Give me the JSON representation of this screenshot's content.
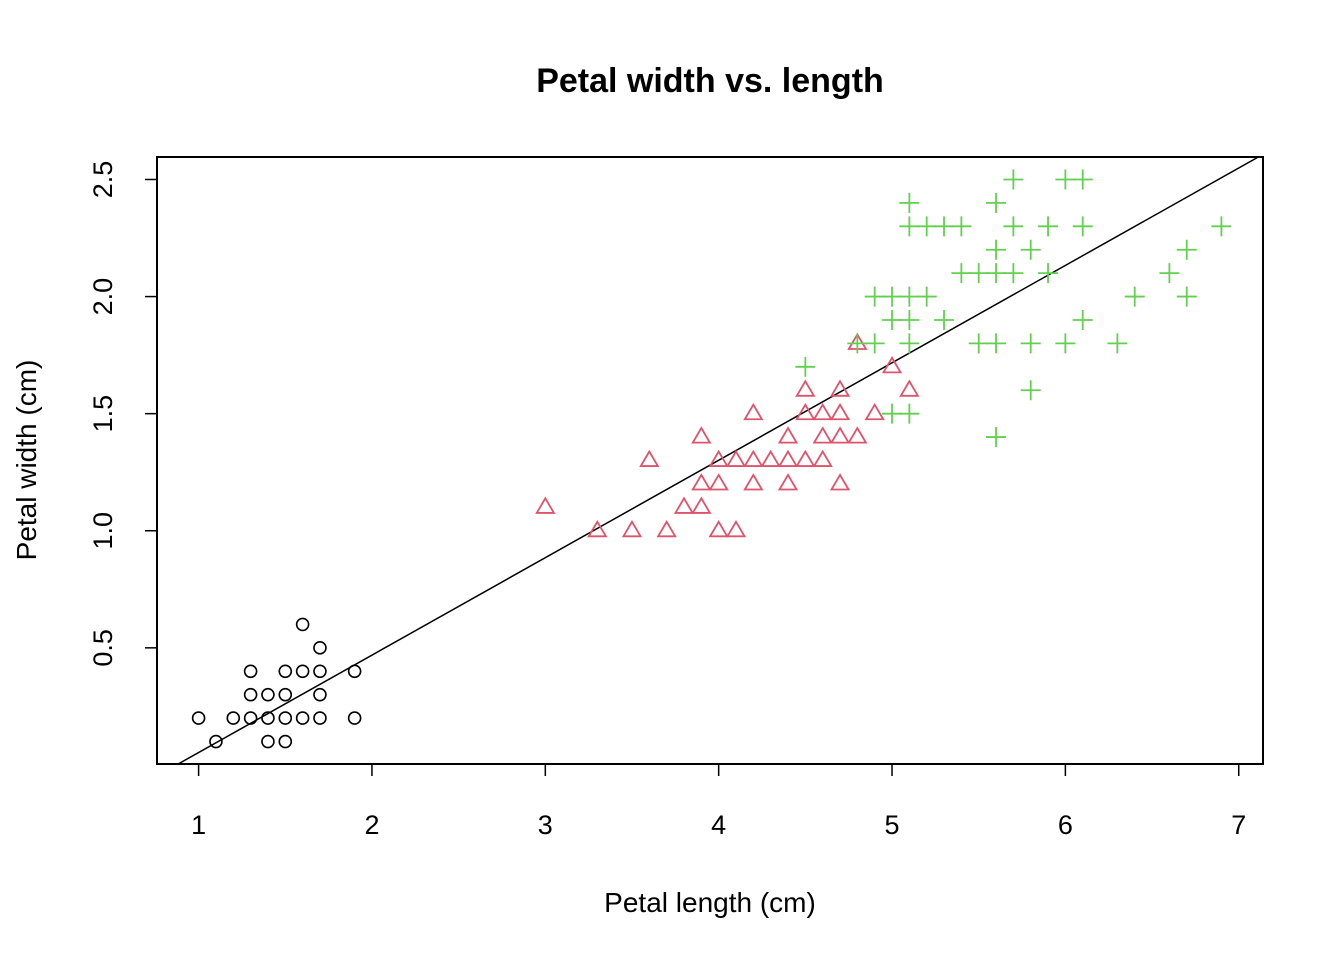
{
  "chart_data": {
    "type": "scatter",
    "title": "Petal width vs. length",
    "xlabel": "Petal length (cm)",
    "ylabel": "Petal width (cm)",
    "xlim": [
      0.76,
      7.14
    ],
    "ylim": [
      0.004,
      2.596
    ],
    "x_ticks": [
      "1",
      "2",
      "3",
      "4",
      "5",
      "6",
      "7"
    ],
    "y_ticks": [
      "0.5",
      "1.0",
      "1.5",
      "2.0",
      "2.5"
    ],
    "grid": false,
    "regression_line": {
      "intercept": -0.363,
      "slope": 0.416,
      "color": "#000000"
    },
    "series": [
      {
        "marker": "circle",
        "color": "#000000",
        "points": [
          [
            1.0,
            0.2
          ],
          [
            1.1,
            0.1
          ],
          [
            1.2,
            0.2
          ],
          [
            1.3,
            0.2
          ],
          [
            1.3,
            0.3
          ],
          [
            1.3,
            0.4
          ],
          [
            1.4,
            0.1
          ],
          [
            1.4,
            0.2
          ],
          [
            1.4,
            0.3
          ],
          [
            1.5,
            0.1
          ],
          [
            1.5,
            0.2
          ],
          [
            1.5,
            0.3
          ],
          [
            1.5,
            0.4
          ],
          [
            1.6,
            0.2
          ],
          [
            1.6,
            0.4
          ],
          [
            1.6,
            0.6
          ],
          [
            1.7,
            0.2
          ],
          [
            1.7,
            0.3
          ],
          [
            1.7,
            0.4
          ],
          [
            1.7,
            0.5
          ],
          [
            1.9,
            0.2
          ],
          [
            1.9,
            0.4
          ]
        ]
      },
      {
        "marker": "triangle",
        "color": "#DF536B",
        "points": [
          [
            3.0,
            1.1
          ],
          [
            3.3,
            1.0
          ],
          [
            3.5,
            1.0
          ],
          [
            3.6,
            1.3
          ],
          [
            3.7,
            1.0
          ],
          [
            3.8,
            1.1
          ],
          [
            3.9,
            1.1
          ],
          [
            3.9,
            1.2
          ],
          [
            3.9,
            1.4
          ],
          [
            4.0,
            1.0
          ],
          [
            4.0,
            1.2
          ],
          [
            4.0,
            1.3
          ],
          [
            4.1,
            1.0
          ],
          [
            4.1,
            1.3
          ],
          [
            4.2,
            1.2
          ],
          [
            4.2,
            1.3
          ],
          [
            4.2,
            1.5
          ],
          [
            4.3,
            1.3
          ],
          [
            4.4,
            1.2
          ],
          [
            4.4,
            1.3
          ],
          [
            4.4,
            1.4
          ],
          [
            4.5,
            1.3
          ],
          [
            4.5,
            1.5
          ],
          [
            4.5,
            1.6
          ],
          [
            4.6,
            1.3
          ],
          [
            4.6,
            1.4
          ],
          [
            4.6,
            1.5
          ],
          [
            4.7,
            1.2
          ],
          [
            4.7,
            1.4
          ],
          [
            4.7,
            1.5
          ],
          [
            4.7,
            1.6
          ],
          [
            4.8,
            1.4
          ],
          [
            4.8,
            1.8
          ],
          [
            4.9,
            1.5
          ],
          [
            5.0,
            1.7
          ],
          [
            5.1,
            1.6
          ]
        ]
      },
      {
        "marker": "plus",
        "color": "#61D04F",
        "points": [
          [
            4.5,
            1.7
          ],
          [
            4.8,
            1.8
          ],
          [
            4.9,
            1.8
          ],
          [
            4.9,
            2.0
          ],
          [
            5.0,
            1.5
          ],
          [
            5.0,
            1.9
          ],
          [
            5.0,
            2.0
          ],
          [
            5.1,
            1.5
          ],
          [
            5.1,
            1.8
          ],
          [
            5.1,
            1.9
          ],
          [
            5.1,
            2.0
          ],
          [
            5.1,
            2.3
          ],
          [
            5.1,
            2.4
          ],
          [
            5.2,
            2.0
          ],
          [
            5.2,
            2.3
          ],
          [
            5.3,
            1.9
          ],
          [
            5.3,
            2.3
          ],
          [
            5.4,
            2.1
          ],
          [
            5.4,
            2.3
          ],
          [
            5.5,
            1.8
          ],
          [
            5.5,
            2.1
          ],
          [
            5.6,
            1.4
          ],
          [
            5.6,
            1.8
          ],
          [
            5.6,
            2.1
          ],
          [
            5.6,
            2.2
          ],
          [
            5.6,
            2.4
          ],
          [
            5.7,
            2.1
          ],
          [
            5.7,
            2.3
          ],
          [
            5.7,
            2.5
          ],
          [
            5.8,
            1.6
          ],
          [
            5.8,
            1.8
          ],
          [
            5.8,
            2.2
          ],
          [
            5.9,
            2.1
          ],
          [
            5.9,
            2.3
          ],
          [
            6.0,
            1.8
          ],
          [
            6.0,
            2.5
          ],
          [
            6.1,
            1.9
          ],
          [
            6.1,
            2.3
          ],
          [
            6.1,
            2.5
          ],
          [
            6.3,
            1.8
          ],
          [
            6.4,
            2.0
          ],
          [
            6.6,
            2.1
          ],
          [
            6.7,
            2.0
          ],
          [
            6.7,
            2.2
          ],
          [
            6.9,
            2.3
          ]
        ]
      }
    ]
  }
}
